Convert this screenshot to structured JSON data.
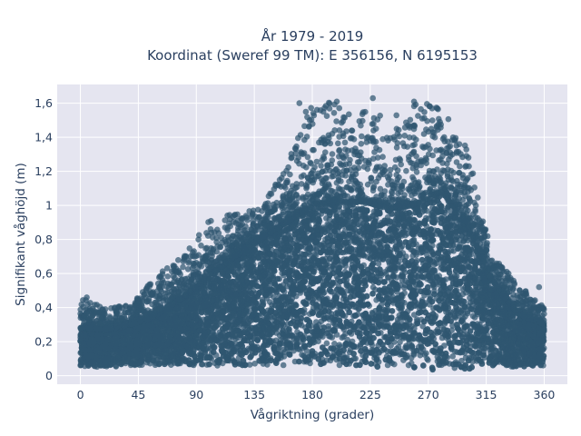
{
  "chart_data": {
    "type": "scatter",
    "title_line1": "År 1979 - 2019",
    "title_line2": "Koordinat (Sweref 99 TM): E 356156, N 6195153",
    "xlabel": "Vågriktning (grader)",
    "ylabel": "Signifikant våghöjd (m)",
    "xlim": [
      -18,
      378
    ],
    "ylim": [
      -0.05,
      1.71
    ],
    "x_ticks": [
      0,
      45,
      90,
      135,
      180,
      225,
      270,
      315,
      360
    ],
    "x_tick_labels": [
      "0",
      "45",
      "90",
      "135",
      "180",
      "225",
      "270",
      "315",
      "360"
    ],
    "y_ticks": [
      0,
      0.2,
      0.4,
      0.6,
      0.8,
      1.0,
      1.2,
      1.4,
      1.6
    ],
    "y_tick_labels": [
      "0",
      "0,2",
      "0,4",
      "0,6",
      "0,8",
      "1",
      "1,2",
      "1,4",
      "1,6"
    ],
    "grid": true,
    "marker_color": "#2f5670",
    "background_color": "#e5e5f0",
    "grid_color": "#ffffff",
    "envelope": {
      "direction_deg": [
        0,
        20,
        40,
        60,
        80,
        100,
        120,
        140,
        160,
        180,
        200,
        220,
        240,
        260,
        280,
        300,
        320,
        340,
        360
      ],
      "lower_m": [
        0.05,
        0.05,
        0.06,
        0.06,
        0.06,
        0.06,
        0.06,
        0.06,
        0.05,
        0.05,
        0.05,
        0.05,
        0.05,
        0.04,
        0.03,
        0.04,
        0.05,
        0.05,
        0.06
      ],
      "dense_upper_m": [
        0.28,
        0.27,
        0.3,
        0.36,
        0.46,
        0.58,
        0.7,
        0.8,
        0.9,
        1.0,
        1.02,
        1.02,
        0.98,
        1.0,
        1.08,
        0.9,
        0.55,
        0.36,
        0.3
      ],
      "max_m": [
        0.46,
        0.4,
        0.42,
        0.6,
        0.7,
        0.92,
        0.95,
        0.98,
        1.25,
        1.6,
        1.61,
        1.63,
        1.5,
        1.61,
        1.58,
        1.35,
        0.7,
        0.54,
        0.4
      ]
    },
    "notable_points": [
      {
        "x": 5,
        "y": 0.46
      },
      {
        "x": 170,
        "y": 1.6
      },
      {
        "x": 175,
        "y": 1.55
      },
      {
        "x": 199,
        "y": 1.61
      },
      {
        "x": 227,
        "y": 1.63
      },
      {
        "x": 259,
        "y": 1.61
      },
      {
        "x": 273,
        "y": 1.57
      },
      {
        "x": 277,
        "y": 1.57
      },
      {
        "x": 286,
        "y": 1.27
      },
      {
        "x": 300,
        "y": 0.95
      },
      {
        "x": 334,
        "y": 0.52
      },
      {
        "x": 356,
        "y": 0.52
      }
    ]
  }
}
